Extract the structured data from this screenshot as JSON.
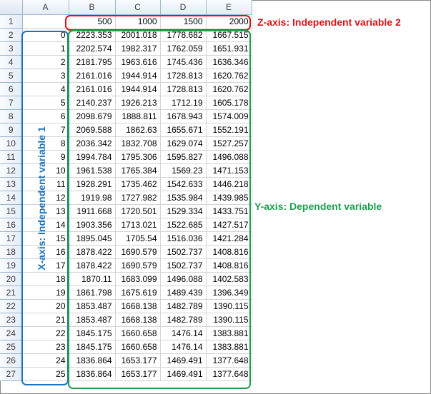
{
  "columns": [
    "A",
    "B",
    "C",
    "D",
    "E"
  ],
  "row_numbers": [
    1,
    2,
    3,
    4,
    5,
    6,
    7,
    8,
    9,
    10,
    11,
    12,
    13,
    14,
    15,
    16,
    17,
    18,
    19,
    20,
    21,
    22,
    23,
    24,
    25,
    26,
    27
  ],
  "header_row": {
    "A": "",
    "B": "500",
    "C": "1000",
    "D": "1500",
    "E": "2000"
  },
  "rows": [
    {
      "A": "0",
      "B": "2223.353",
      "C": "2001.018",
      "D": "1778.682",
      "E": "1667.515"
    },
    {
      "A": "1",
      "B": "2202.574",
      "C": "1982.317",
      "D": "1762.059",
      "E": "1651.931"
    },
    {
      "A": "2",
      "B": "2181.795",
      "C": "1963.616",
      "D": "1745.436",
      "E": "1636.346"
    },
    {
      "A": "3",
      "B": "2161.016",
      "C": "1944.914",
      "D": "1728.813",
      "E": "1620.762"
    },
    {
      "A": "4",
      "B": "2161.016",
      "C": "1944.914",
      "D": "1728.813",
      "E": "1620.762"
    },
    {
      "A": "5",
      "B": "2140.237",
      "C": "1926.213",
      "D": "1712.19",
      "E": "1605.178"
    },
    {
      "A": "6",
      "B": "2098.679",
      "C": "1888.811",
      "D": "1678.943",
      "E": "1574.009"
    },
    {
      "A": "7",
      "B": "2069.588",
      "C": "1862.63",
      "D": "1655.671",
      "E": "1552.191"
    },
    {
      "A": "8",
      "B": "2036.342",
      "C": "1832.708",
      "D": "1629.074",
      "E": "1527.257"
    },
    {
      "A": "9",
      "B": "1994.784",
      "C": "1795.306",
      "D": "1595.827",
      "E": "1496.088"
    },
    {
      "A": "10",
      "B": "1961.538",
      "C": "1765.384",
      "D": "1569.23",
      "E": "1471.153"
    },
    {
      "A": "11",
      "B": "1928.291",
      "C": "1735.462",
      "D": "1542.633",
      "E": "1446.218"
    },
    {
      "A": "12",
      "B": "1919.98",
      "C": "1727.982",
      "D": "1535.984",
      "E": "1439.985"
    },
    {
      "A": "13",
      "B": "1911.668",
      "C": "1720.501",
      "D": "1529.334",
      "E": "1433.751"
    },
    {
      "A": "14",
      "B": "1903.356",
      "C": "1713.021",
      "D": "1522.685",
      "E": "1427.517"
    },
    {
      "A": "15",
      "B": "1895.045",
      "C": "1705.54",
      "D": "1516.036",
      "E": "1421.284"
    },
    {
      "A": "16",
      "B": "1878.422",
      "C": "1690.579",
      "D": "1502.737",
      "E": "1408.816"
    },
    {
      "A": "17",
      "B": "1878.422",
      "C": "1690.579",
      "D": "1502.737",
      "E": "1408.816"
    },
    {
      "A": "18",
      "B": "1870.11",
      "C": "1683.099",
      "D": "1496.088",
      "E": "1402.583"
    },
    {
      "A": "19",
      "B": "1861.798",
      "C": "1675.619",
      "D": "1489.439",
      "E": "1396.349"
    },
    {
      "A": "20",
      "B": "1853.487",
      "C": "1668.138",
      "D": "1482.789",
      "E": "1390.115"
    },
    {
      "A": "21",
      "B": "1853.487",
      "C": "1668.138",
      "D": "1482.789",
      "E": "1390.115"
    },
    {
      "A": "22",
      "B": "1845.175",
      "C": "1660.658",
      "D": "1476.14",
      "E": "1383.881"
    },
    {
      "A": "23",
      "B": "1845.175",
      "C": "1660.658",
      "D": "1476.14",
      "E": "1383.881"
    },
    {
      "A": "24",
      "B": "1836.864",
      "C": "1653.177",
      "D": "1469.491",
      "E": "1377.648"
    },
    {
      "A": "25",
      "B": "1836.864",
      "C": "1653.177",
      "D": "1469.491",
      "E": "1377.648"
    }
  ],
  "annotations": {
    "z_axis": "Z-axis: Independent variable 2",
    "y_axis": "Y-axis: Dependent variable",
    "x_axis": "X-axis: Independent variable 1"
  },
  "colors": {
    "z_axis": "#d7141a",
    "y_axis": "#1f9d4e",
    "x_axis": "#1e72b8"
  }
}
